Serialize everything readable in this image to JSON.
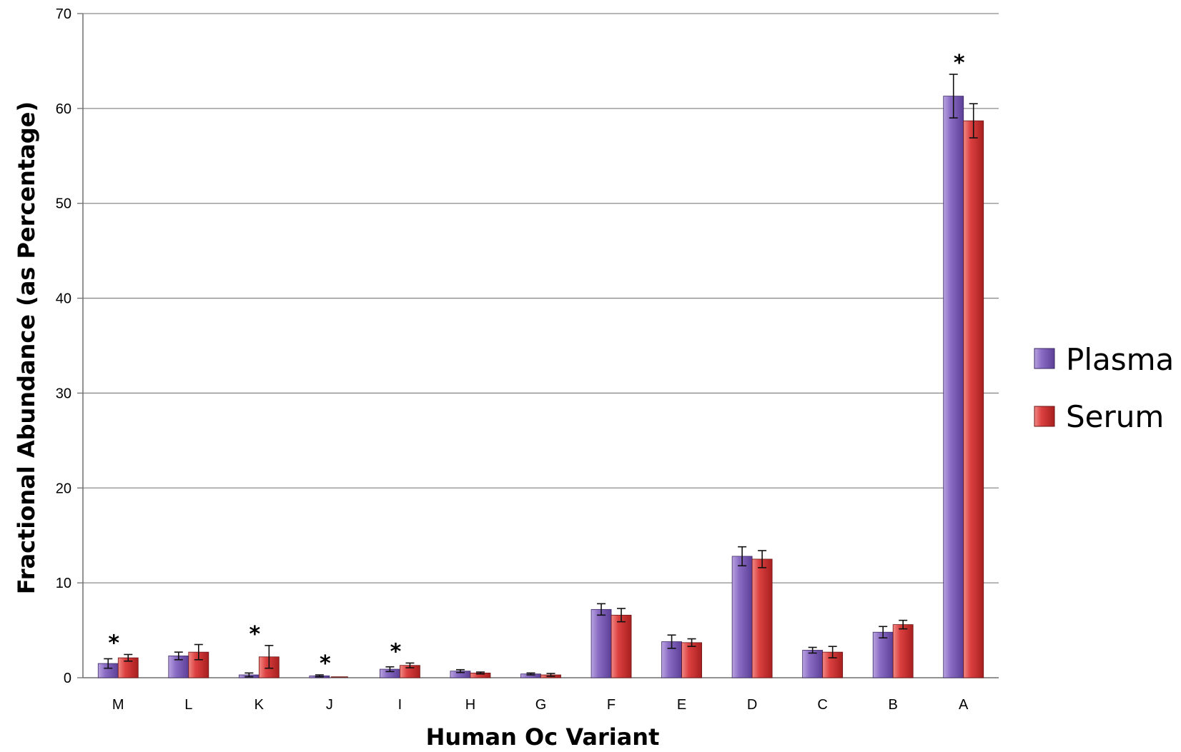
{
  "chart_data": {
    "type": "bar",
    "title": "",
    "xlabel": "Human Oc Variant",
    "ylabel": "Fractional Abundance (as Percentage)",
    "ylim": [
      0,
      70
    ],
    "yticks": [
      0,
      10,
      20,
      30,
      40,
      50,
      60,
      70
    ],
    "grid": true,
    "legend_position": "right",
    "categories": [
      "M",
      "L",
      "K",
      "J",
      "I",
      "H",
      "G",
      "F",
      "E",
      "D",
      "C",
      "B",
      "A"
    ],
    "series": [
      {
        "name": "Plasma",
        "color": "#7f5db8",
        "values": [
          1.5,
          2.3,
          0.3,
          0.2,
          0.9,
          0.7,
          0.4,
          7.2,
          3.8,
          12.8,
          2.9,
          4.8,
          61.3
        ],
        "errors": [
          0.5,
          0.4,
          0.2,
          0.1,
          0.25,
          0.15,
          0.1,
          0.6,
          0.7,
          1.0,
          0.3,
          0.6,
          2.3
        ]
      },
      {
        "name": "Serum",
        "color": "#d63a3a",
        "values": [
          2.1,
          2.7,
          2.2,
          0.0,
          1.3,
          0.5,
          0.3,
          6.6,
          3.7,
          12.5,
          2.7,
          5.6,
          58.7
        ],
        "errors": [
          0.35,
          0.8,
          1.2,
          0.0,
          0.25,
          0.1,
          0.15,
          0.7,
          0.4,
          0.9,
          0.6,
          0.45,
          1.8
        ]
      }
    ],
    "significance_marker": "*",
    "significant_categories": [
      "M",
      "K",
      "J",
      "I",
      "A"
    ]
  }
}
